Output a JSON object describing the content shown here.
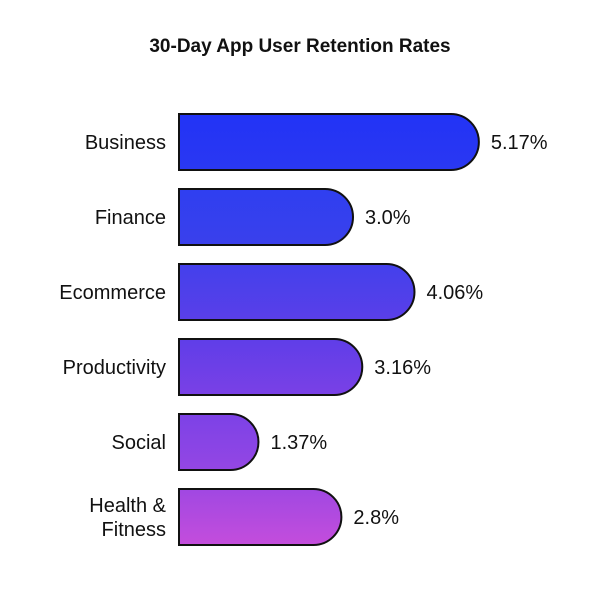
{
  "chart_data": {
    "type": "bar",
    "orientation": "horizontal",
    "title": "30-Day App User Retention Rates",
    "xlabel": "",
    "ylabel": "",
    "grid": false,
    "categories": [
      "Business",
      "Finance",
      "Ecommerce",
      "Productivity",
      "Social",
      "Health & Fitness"
    ],
    "category_lines": [
      [
        "Business"
      ],
      [
        "Finance"
      ],
      [
        "Ecommerce"
      ],
      [
        "Productivity"
      ],
      [
        "Social"
      ],
      [
        "Health &",
        "Fitness"
      ]
    ],
    "values": [
      5.17,
      3.0,
      4.06,
      3.16,
      1.37,
      2.8
    ],
    "value_labels": [
      "5.17%",
      "3.0%",
      "4.06%",
      "3.16%",
      "1.37%",
      "2.8%"
    ],
    "unit": "%",
    "colors": [
      [
        "#2233f6",
        "#2a38f2"
      ],
      [
        "#2f3ff0",
        "#3a40ec"
      ],
      [
        "#4340ec",
        "#5a3fe8"
      ],
      [
        "#5f3ee8",
        "#7a40e6"
      ],
      [
        "#7c42e6",
        "#9446e4"
      ],
      [
        "#a048e2",
        "#c44ddc"
      ]
    ]
  }
}
